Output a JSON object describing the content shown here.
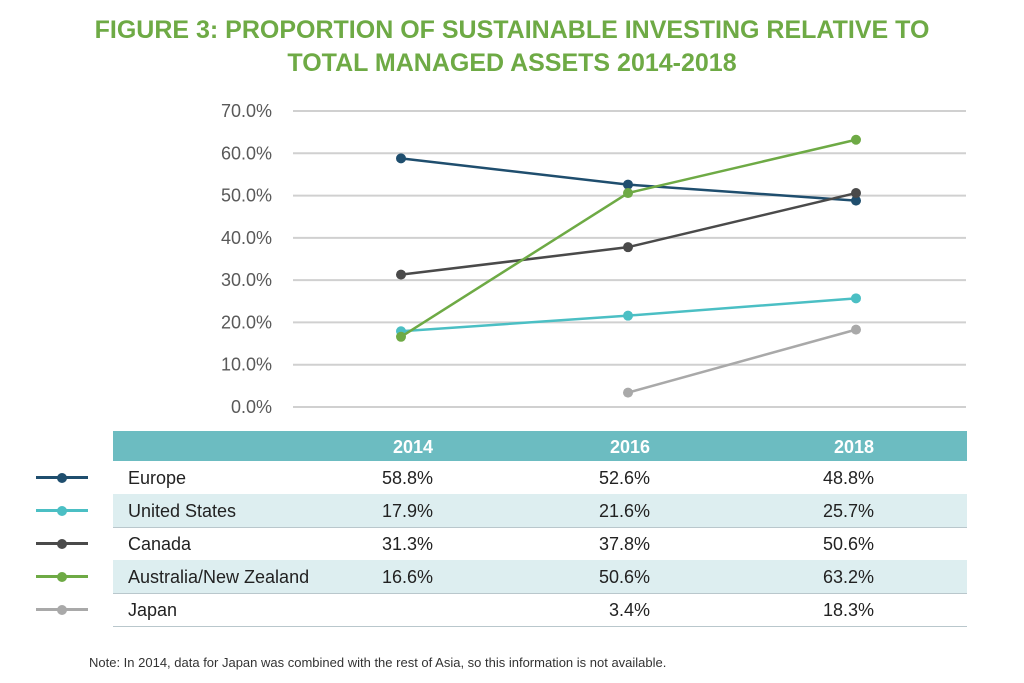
{
  "title_lines": [
    "FIGURE 3: PROPORTION OF SUSTAINABLE INVESTING RELATIVE TO",
    "TOTAL MANAGED ASSETS 2014-2018"
  ],
  "note": "Note: In 2014, data for Japan was combined with the rest of Asia, so this information is not available.",
  "table": {
    "headers": [
      "2014",
      "2016",
      "2018"
    ],
    "rows": [
      {
        "name": "Europe",
        "values": [
          "58.8%",
          "52.6%",
          "48.8%"
        ]
      },
      {
        "name": "United States",
        "values": [
          "17.9%",
          "21.6%",
          "25.7%"
        ]
      },
      {
        "name": "Canada",
        "values": [
          "31.3%",
          "37.8%",
          "50.6%"
        ]
      },
      {
        "name": "Australia/New Zealand",
        "values": [
          "16.6%",
          "50.6%",
          "63.2%"
        ]
      },
      {
        "name": "Japan",
        "values": [
          "",
          "3.4%",
          "18.3%"
        ]
      }
    ]
  },
  "chart_data": {
    "type": "line",
    "title": "FIGURE 3: PROPORTION OF SUSTAINABLE INVESTING RELATIVE TO TOTAL MANAGED ASSETS 2014-2018",
    "x": [
      "2014",
      "2016",
      "2018"
    ],
    "ylim": [
      0,
      70
    ],
    "y_ticks": [
      "0.0%",
      "10.0%",
      "20.0%",
      "30.0%",
      "40.0%",
      "50.0%",
      "60.0%",
      "70.0%"
    ],
    "grid": true,
    "legend": "left of table rows",
    "series": [
      {
        "name": "Europe",
        "color": "#1f4e6e",
        "values": [
          58.8,
          52.6,
          48.8
        ]
      },
      {
        "name": "United States",
        "color": "#4bbfc4",
        "values": [
          17.9,
          21.6,
          25.7
        ]
      },
      {
        "name": "Canada",
        "color": "#4a4a4a",
        "values": [
          31.3,
          37.8,
          50.6
        ]
      },
      {
        "name": "Australia/New Zealand",
        "color": "#6eaa45",
        "values": [
          16.6,
          50.6,
          63.2
        ]
      },
      {
        "name": "Japan",
        "color": "#a9a9a9",
        "values": [
          null,
          3.4,
          18.3
        ]
      }
    ]
  }
}
